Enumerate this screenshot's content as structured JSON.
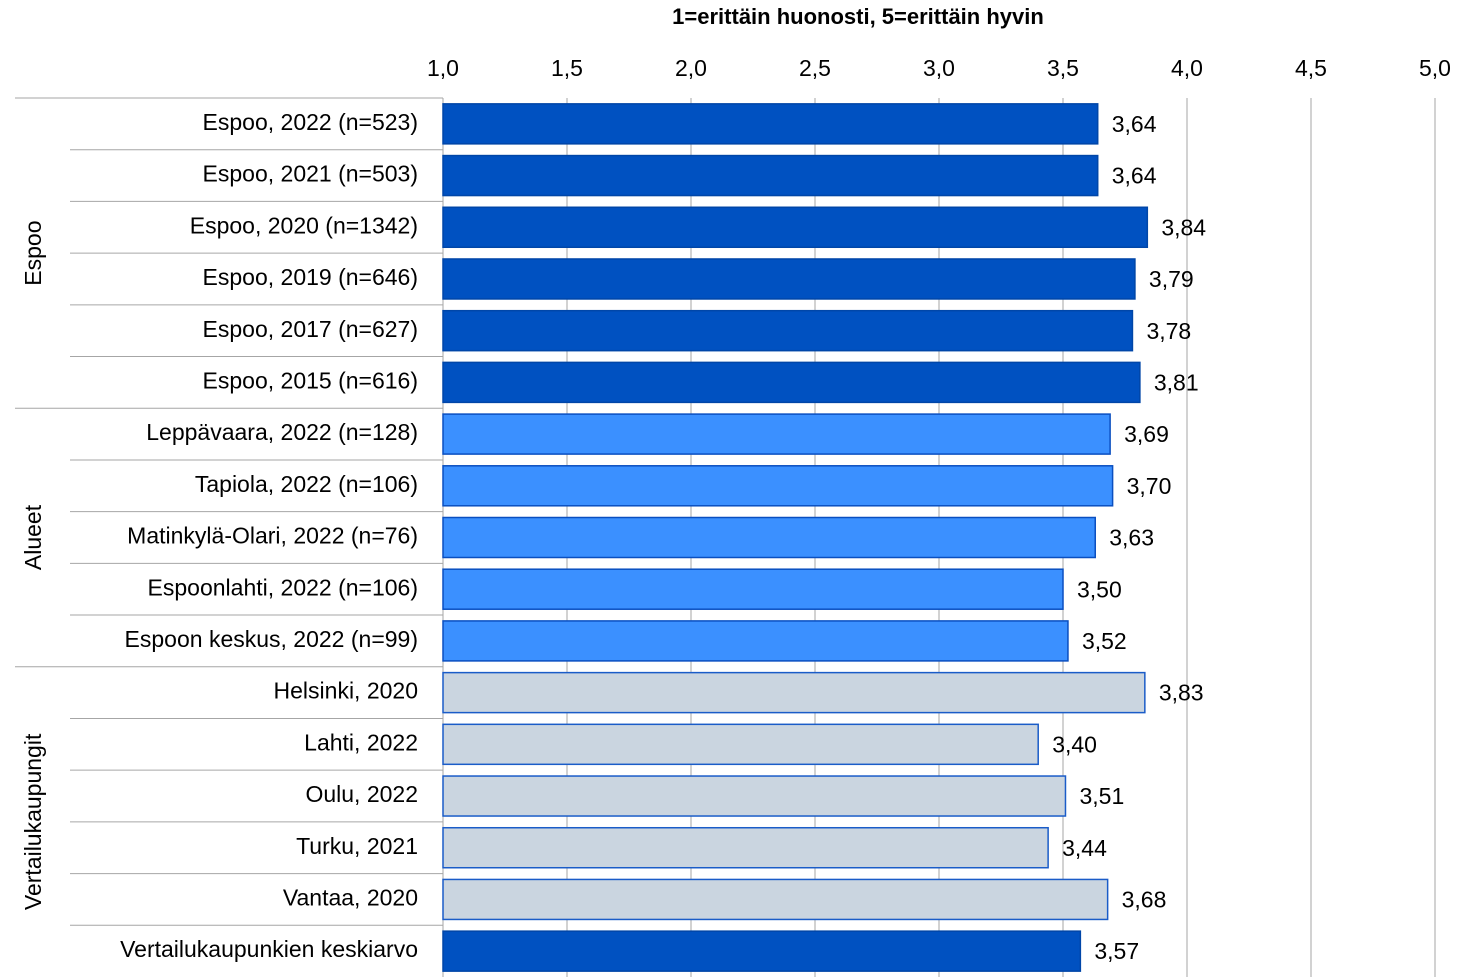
{
  "chart_data": {
    "type": "bar",
    "orientation": "horizontal",
    "xlabel": "1=erittäin huonosti, 5=erittäin hyvin",
    "xlim": [
      1,
      5
    ],
    "xticks": [
      {
        "value": 1,
        "label": "1,0"
      },
      {
        "value": 1.5,
        "label": "1,5"
      },
      {
        "value": 2,
        "label": "2,0"
      },
      {
        "value": 2.5,
        "label": "2,5"
      },
      {
        "value": 3,
        "label": "3,0"
      },
      {
        "value": 3.5,
        "label": "3,5"
      },
      {
        "value": 4,
        "label": "4,0"
      },
      {
        "value": 4.5,
        "label": "4,5"
      },
      {
        "value": 5,
        "label": "5,0"
      }
    ],
    "grid": true,
    "groups": [
      {
        "name": "Espoo",
        "categories": [
          "Espoo, 2022 (n=523)",
          "Espoo, 2021 (n=503)",
          "Espoo, 2020 (n=1342)",
          "Espoo, 2019 (n=646)",
          "Espoo, 2017 (n=627)",
          "Espoo, 2015 (n=616)"
        ],
        "values": [
          3.64,
          3.64,
          3.84,
          3.79,
          3.78,
          3.81
        ],
        "value_labels": [
          "3,64",
          "3,64",
          "3,84",
          "3,79",
          "3,78",
          "3,81"
        ],
        "colors": [
          "#0051c1",
          "#0051c1",
          "#0051c1",
          "#0051c1",
          "#0051c1",
          "#0051c1"
        ],
        "edgecolors": [
          "#0046a8",
          "#0046a8",
          "#0046a8",
          "#0046a8",
          "#0046a8",
          "#0046a8"
        ]
      },
      {
        "name": "Alueet",
        "categories": [
          "Leppävaara, 2022 (n=128)",
          "Tapiola, 2022 (n=106)",
          "Matinkylä-Olari, 2022 (n=76)",
          "Espoonlahti, 2022 (n=106)",
          "Espoon keskus, 2022 (n=99)"
        ],
        "values": [
          3.69,
          3.7,
          3.63,
          3.5,
          3.52
        ],
        "value_labels": [
          "3,69",
          "3,70",
          "3,63",
          "3,50",
          "3,52"
        ],
        "colors": [
          "#3b90ff",
          "#3b90ff",
          "#3b90ff",
          "#3b90ff",
          "#3b90ff"
        ],
        "edgecolors": [
          "#0a4fc0",
          "#0a4fc0",
          "#0a4fc0",
          "#0a4fc0",
          "#0a4fc0"
        ]
      },
      {
        "name": "Vertailukaupungit",
        "categories": [
          "Helsinki, 2020",
          "Lahti, 2022",
          "Oulu, 2022",
          "Turku, 2021",
          "Vantaa, 2020",
          "Vertailukaupunkien keskiarvo"
        ],
        "values": [
          3.83,
          3.4,
          3.51,
          3.44,
          3.68,
          3.57
        ],
        "value_labels": [
          "3,83",
          "3,40",
          "3,51",
          "3,44",
          "3,68",
          "3,57"
        ],
        "colors": [
          "#cad5e0",
          "#cad5e0",
          "#cad5e0",
          "#cad5e0",
          "#cad5e0",
          "#0051c1"
        ],
        "edgecolors": [
          "#1a5cc8",
          "#1a5cc8",
          "#1a5cc8",
          "#1a5cc8",
          "#1a5cc8",
          "#0046a8"
        ]
      }
    ]
  }
}
